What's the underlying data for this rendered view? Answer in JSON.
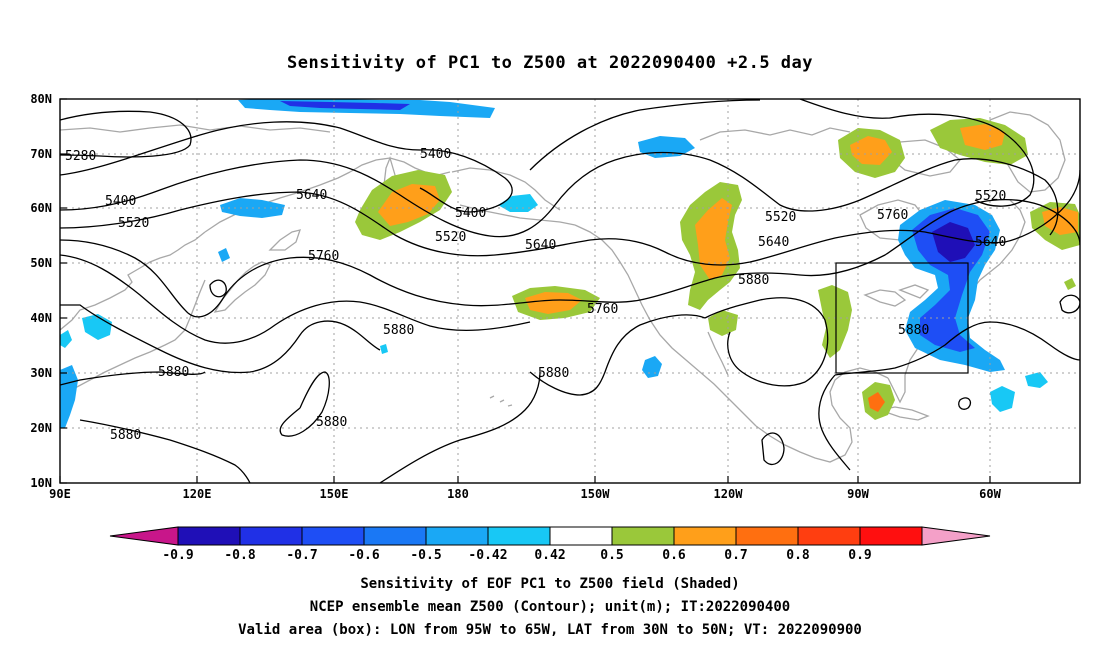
{
  "title": "Sensitivity of PC1 to Z500 at 2022090400 +2.5 day",
  "map": {
    "lon_range": [
      "90E",
      "50W"
    ],
    "lat_range": [
      "10N",
      "80N"
    ],
    "x_ticks": [
      "90E",
      "120E",
      "150E",
      "180",
      "150W",
      "120W",
      "90W",
      "60W"
    ],
    "y_ticks": [
      "10N",
      "20N",
      "30N",
      "40N",
      "50N",
      "60N",
      "70N",
      "80N"
    ],
    "box_label": "",
    "contour_labels": [
      "5280",
      "5400",
      "5400",
      "5400",
      "5520",
      "5520",
      "5520",
      "5520",
      "5640",
      "5640",
      "5640",
      "5640",
      "5760",
      "5760",
      "5760",
      "5880",
      "5880",
      "5880",
      "5880",
      "5880",
      "5880",
      "5880"
    ]
  },
  "colorbar": {
    "tick_labels": [
      "-0.9",
      "-0.8",
      "-0.7",
      "-0.6",
      "-0.5",
      "-0.42",
      "0.42",
      "0.5",
      "0.6",
      "0.7",
      "0.8",
      "0.9"
    ],
    "colors": {
      "below": "#c8168a",
      "bins": [
        "#1f0fb7",
        "#2030e6",
        "#1e4ef5",
        "#1a78f5",
        "#1aa8f5",
        "#18c8f5",
        "#ffffff",
        "#9ac83a",
        "#ff9f1a",
        "#ff6f10",
        "#ff3e10",
        "#ff0f0f"
      ],
      "above": "#f4a0c8"
    }
  },
  "captions": {
    "line1": "Sensitivity of EOF PC1 to Z500 field (Shaded)",
    "line2": "NCEP ensemble mean Z500 (Contour); unit(m); IT:2022090400",
    "line3": "Valid area (box): LON from 95W to 65W, LAT from 30N to 50N; VT: 2022090900"
  }
}
